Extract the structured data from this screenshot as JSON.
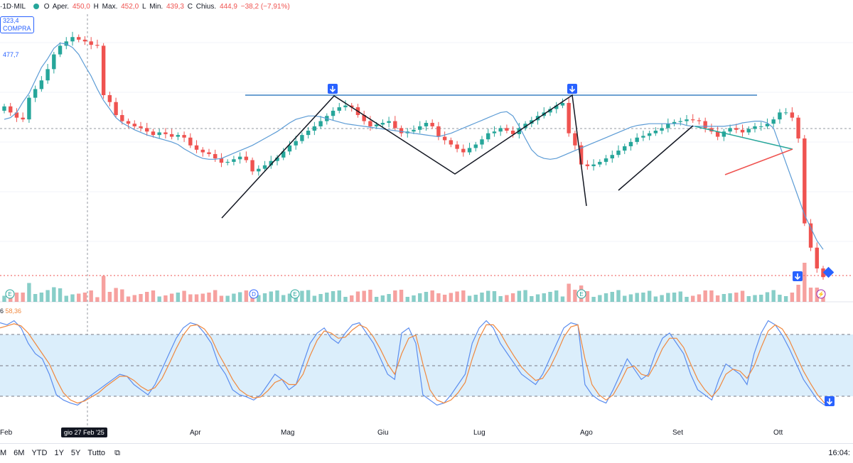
{
  "header": {
    "symbol_prefix": "·1D·MIL",
    "open_label": "O",
    "open_text": "Aper.",
    "open": "450,0",
    "high_label": "H",
    "high_text": "Max.",
    "high": "452,0",
    "low_label": "L",
    "low_text": "Min.",
    "low": "439,3",
    "close_label": "C",
    "close_text": "Chius.",
    "close": "444,9",
    "change": "−38,2 (−7,91%)"
  },
  "tags": {
    "price": "323,4",
    "action": "COMPRA",
    "ma_value": "477,7"
  },
  "oscillator": {
    "label_left": "6",
    "value": "58,36"
  },
  "x_axis": [
    "Feb",
    "Apr",
    "Mag",
    "Giu",
    "Lug",
    "Ago",
    "Set",
    "Ott"
  ],
  "crosshair_date": "gio 27 Feb '25",
  "ranges": [
    "M",
    "6M",
    "YTD",
    "1Y",
    "5Y",
    "Tutto"
  ],
  "time": "16:04:",
  "colors": {
    "up": "#26a69a",
    "down": "#ef5350",
    "ma": "#5b9bd5",
    "hline": "#3b82c4",
    "k_line": "#5b8def",
    "d_line": "#f0883e",
    "band": "#dbeefb"
  },
  "chart_data": {
    "type": "candlestick",
    "series": [
      {
        "name": "price",
        "values": [
          485,
          478,
          472,
          470,
          495,
          505,
          515,
          528,
          545,
          555,
          560,
          565,
          562,
          560,
          556,
          555,
          498,
          490,
          475,
          468,
          465,
          462,
          460,
          456,
          452,
          455,
          453,
          450,
          452,
          449,
          440,
          435,
          432,
          430,
          425,
          420,
          421,
          424,
          427,
          423,
          410,
          413,
          417,
          422,
          426,
          433,
          440,
          445,
          452,
          457,
          462,
          468,
          474,
          480,
          484,
          486,
          484,
          475,
          468,
          462,
          464,
          466,
          468,
          460,
          454,
          456,
          458,
          462,
          466,
          462,
          450,
          446,
          441,
          436,
          432,
          437,
          441,
          447,
          454,
          456,
          460,
          457,
          453,
          460,
          465,
          469,
          474,
          478,
          482,
          486,
          489,
          454,
          440,
          418,
          416,
          418,
          421,
          425,
          429,
          434,
          439,
          444,
          449,
          451,
          454,
          457,
          460,
          465,
          467,
          468,
          470,
          469,
          468,
          460,
          456,
          450,
          456,
          460,
          458,
          455,
          459,
          462,
          462,
          465,
          470,
          478,
          478,
          472,
          448,
          350,
          322,
          298,
          288
        ]
      },
      {
        "name": "moving average",
        "values": [
          470,
          472,
          478,
          490,
          500,
          515,
          530,
          540,
          552,
          558,
          557,
          553,
          545,
          532,
          520,
          505,
          492,
          482,
          472,
          466,
          462,
          458,
          455,
          452,
          450,
          448,
          446,
          444,
          441,
          436,
          432,
          428,
          425,
          424,
          424,
          425,
          428,
          431,
          434,
          437,
          440,
          444,
          448,
          452,
          456,
          461,
          466,
          470,
          472,
          474,
          474,
          473,
          471,
          469,
          467,
          465,
          464,
          463,
          462,
          461,
          460,
          459,
          458,
          457,
          456,
          455,
          454,
          453,
          452,
          451,
          450,
          452,
          454,
          457,
          460,
          463,
          466,
          469,
          472,
          475,
          478,
          479,
          474,
          462,
          448,
          435,
          428,
          425,
          424,
          425,
          428,
          431,
          434,
          437,
          440,
          443,
          446,
          449,
          452,
          455,
          458,
          461,
          463,
          464,
          465,
          465,
          465,
          465,
          465,
          465,
          463,
          462,
          462,
          462,
          462,
          462,
          462,
          463,
          464,
          466,
          467,
          468,
          468,
          466,
          460,
          440,
          420,
          400,
          380,
          360,
          345,
          330,
          320
        ]
      },
      {
        "name": "%K",
        "values": [
          90,
          88,
          92,
          85,
          70,
          60,
          55,
          40,
          20,
          15,
          12,
          10,
          15,
          20,
          25,
          30,
          35,
          40,
          38,
          30,
          25,
          20,
          30,
          45,
          60,
          75,
          85,
          90,
          88,
          80,
          70,
          50,
          40,
          25,
          20,
          18,
          15,
          20,
          30,
          40,
          35,
          25,
          30,
          50,
          70,
          80,
          85,
          75,
          70,
          80,
          88,
          90,
          80,
          70,
          55,
          40,
          35,
          80,
          85,
          70,
          20,
          15,
          10,
          12,
          20,
          30,
          40,
          70,
          85,
          92,
          85,
          70,
          60,
          50,
          40,
          35,
          30,
          40,
          55,
          70,
          85,
          90,
          88,
          30,
          20,
          15,
          12,
          25,
          40,
          55,
          45,
          35,
          40,
          60,
          75,
          80,
          70,
          60,
          40,
          25,
          20,
          15,
          35,
          50,
          45,
          40,
          30,
          60,
          80,
          92,
          88,
          78,
          65,
          50,
          35,
          25,
          15,
          10
        ]
      },
      {
        "name": "%D",
        "values": [
          85,
          87,
          89,
          87,
          80,
          70,
          60,
          50,
          35,
          22,
          15,
          12,
          14,
          18,
          22,
          28,
          33,
          38,
          38,
          34,
          28,
          24,
          27,
          36,
          50,
          65,
          78,
          87,
          88,
          84,
          75,
          60,
          48,
          35,
          25,
          20,
          17,
          18,
          24,
          32,
          35,
          30,
          30,
          40,
          58,
          73,
          82,
          80,
          75,
          76,
          83,
          88,
          85,
          76,
          64,
          50,
          40,
          60,
          75,
          78,
          50,
          25,
          15,
          12,
          15,
          22,
          32,
          55,
          75,
          88,
          88,
          80,
          68,
          57,
          47,
          40,
          34,
          36,
          46,
          60,
          76,
          86,
          88,
          55,
          30,
          20,
          15,
          20,
          32,
          46,
          48,
          40,
          38,
          50,
          65,
          75,
          75,
          66,
          50,
          35,
          25,
          18,
          26,
          40,
          45,
          43,
          36,
          48,
          66,
          82,
          88,
          84,
          73,
          58,
          43,
          31,
          20,
          12
        ]
      }
    ]
  }
}
